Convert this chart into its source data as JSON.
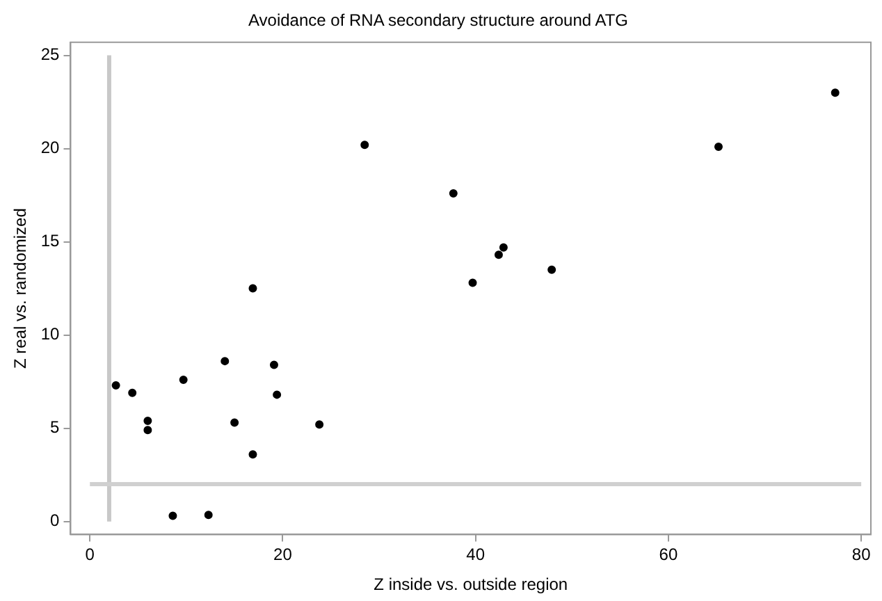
{
  "chart_data": {
    "type": "scatter",
    "title": "Avoidance of RNA secondary structure around ATG",
    "xlabel": "Z inside vs. outside region",
    "ylabel": "Z real vs. randomized",
    "x": [
      2.7,
      4.4,
      6.0,
      6.0,
      8.6,
      12.3,
      9.7,
      14.0,
      15.0,
      16.9,
      16.9,
      19.1,
      19.4,
      23.8,
      28.5,
      37.7,
      39.7,
      42.4,
      42.9,
      47.9,
      65.2,
      77.3
    ],
    "series": [
      {
        "color": "#000000",
        "values": [
          7.3,
          6.9,
          5.4,
          4.9,
          0.3,
          0.35,
          7.6,
          8.6,
          5.3,
          12.5,
          3.6,
          8.4,
          6.8,
          5.2,
          20.2,
          17.6,
          12.8,
          14.3,
          14.7,
          13.5,
          20.1,
          23.0
        ]
      }
    ],
    "xlim": [
      -2,
      81
    ],
    "ylim": [
      -0.7,
      25.7
    ],
    "xticks": [
      0,
      20,
      40,
      60,
      80
    ],
    "yticks": [
      0,
      5,
      10,
      15,
      20,
      25
    ],
    "ref_lines": [
      {
        "axis": "x",
        "value": 2,
        "color": "#c8c8c8"
      },
      {
        "axis": "y",
        "value": 2,
        "color": "#d0d0d0"
      }
    ],
    "grid": false,
    "legend": false,
    "marker": "circle"
  }
}
